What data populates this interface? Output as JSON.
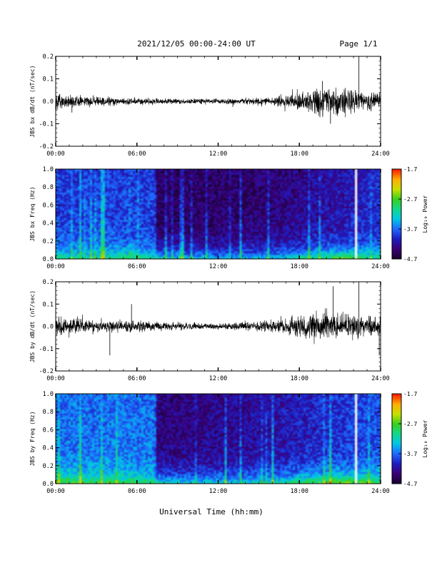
{
  "header": {
    "date_range": "2021/12/05  00:00-24:00 UT",
    "page": "Page 1/1"
  },
  "xlabel": "Universal Time (hh:mm)",
  "colors": {
    "line": "#000000",
    "colorbar_stops": [
      "#1a0033",
      "#3a007a",
      "#1d1fc4",
      "#1e6bff",
      "#00c8e6",
      "#13d88a",
      "#38d11e",
      "#c8e000",
      "#ffb000",
      "#ff2000"
    ]
  },
  "chart_data": [
    {
      "id": "bx_dbdt",
      "type": "line",
      "ylabel": "JBS bx dB/dt (nT/sec)",
      "xlim": [
        0,
        24
      ],
      "ylim": [
        -0.2,
        0.2
      ],
      "xticks": [
        0,
        6,
        12,
        18,
        24
      ],
      "xtick_labels": [
        "00:00",
        "06:00",
        "12:00",
        "18:00",
        "24:00"
      ],
      "yticks": [
        -0.2,
        -0.1,
        0.0,
        0.1,
        0.2
      ],
      "ytick_labels": [
        "-0.2",
        "-0.1",
        "0.0",
        "0.1",
        "0.2"
      ],
      "envelope": {
        "hours": [
          0,
          1,
          2,
          4,
          6,
          8,
          10,
          12,
          14,
          16,
          17,
          18,
          19,
          20,
          21,
          22,
          23,
          24
        ],
        "amplitude": [
          0.035,
          0.03,
          0.025,
          0.018,
          0.015,
          0.012,
          0.012,
          0.012,
          0.014,
          0.02,
          0.028,
          0.04,
          0.055,
          0.065,
          0.06,
          0.05,
          0.045,
          0.04
        ]
      },
      "spikes": [
        {
          "hour": 22.4,
          "value": 0.2
        },
        {
          "hour": 20.3,
          "value": -0.1
        },
        {
          "hour": 19.7,
          "value": 0.09
        },
        {
          "hour": 1.2,
          "value": -0.05
        }
      ]
    },
    {
      "id": "bx_spec",
      "type": "heatmap",
      "ylabel": "JBS bx Freq (Hz)",
      "colorbar_label": "Log₁₀ Power",
      "xlim": [
        0,
        24
      ],
      "ylim": [
        0,
        1
      ],
      "xticks": [
        0,
        6,
        12,
        18,
        24
      ],
      "xtick_labels": [
        "00:00",
        "06:00",
        "12:00",
        "18:00",
        "24:00"
      ],
      "yticks": [
        0,
        0.2,
        0.4,
        0.6,
        0.8,
        1.0
      ],
      "ytick_labels": [
        "0.0",
        "0.2",
        "0.4",
        "0.6",
        "0.8",
        "1.0"
      ],
      "clim": [
        -4.7,
        -1.7
      ],
      "cticks": [
        -4.7,
        -3.7,
        -2.7,
        -1.7
      ],
      "ctick_labels": [
        "-4.7",
        "-3.7",
        "-2.7",
        "-1.7"
      ],
      "background_level": {
        "hours": [
          0,
          7.3,
          7.4,
          16,
          24
        ],
        "level": [
          -3.9,
          -3.9,
          -4.5,
          -4.4,
          -4.0
        ]
      },
      "low_freq_level": {
        "hours": [
          0,
          2,
          6,
          8,
          12,
          16,
          19,
          21,
          24
        ],
        "level": [
          -3.0,
          -3.1,
          -3.0,
          -3.3,
          -3.5,
          -3.4,
          -3.0,
          -2.8,
          -3.0
        ]
      },
      "gaps": [
        {
          "hour": 22.3
        }
      ]
    },
    {
      "id": "by_dbdt",
      "type": "line",
      "ylabel": "JBS by dB/dt (nT/sec)",
      "xlim": [
        0,
        24
      ],
      "ylim": [
        -0.2,
        0.2
      ],
      "xticks": [
        0,
        6,
        12,
        18,
        24
      ],
      "xtick_labels": [
        "00:00",
        "06:00",
        "12:00",
        "18:00",
        "24:00"
      ],
      "yticks": [
        -0.2,
        -0.1,
        0.0,
        0.1,
        0.2
      ],
      "ytick_labels": [
        "-0.2",
        "-0.1",
        "0.0",
        "0.1",
        "0.2"
      ],
      "envelope": {
        "hours": [
          0,
          1,
          2,
          4,
          6,
          8,
          10,
          12,
          14,
          16,
          17,
          18,
          19,
          20,
          21,
          22,
          23,
          24
        ],
        "amplitude": [
          0.045,
          0.045,
          0.035,
          0.03,
          0.025,
          0.018,
          0.015,
          0.014,
          0.018,
          0.028,
          0.04,
          0.05,
          0.06,
          0.065,
          0.06,
          0.055,
          0.05,
          0.045
        ]
      },
      "spikes": [
        {
          "hour": 20.5,
          "value": 0.18
        },
        {
          "hour": 22.4,
          "value": 0.2
        },
        {
          "hour": 4.0,
          "value": -0.13
        },
        {
          "hour": 5.6,
          "value": 0.1
        },
        {
          "hour": 23.9,
          "value": -0.13
        }
      ]
    },
    {
      "id": "by_spec",
      "type": "heatmap",
      "ylabel": "JBS by Freq (Hz)",
      "colorbar_label": "Log₁₀ Power",
      "xlim": [
        0,
        24
      ],
      "ylim": [
        0,
        1
      ],
      "xticks": [
        0,
        6,
        12,
        18,
        24
      ],
      "xtick_labels": [
        "00:00",
        "06:00",
        "12:00",
        "18:00",
        "24:00"
      ],
      "yticks": [
        0,
        0.2,
        0.4,
        0.6,
        0.8,
        1.0
      ],
      "ytick_labels": [
        "0.0",
        "0.2",
        "0.4",
        "0.6",
        "0.8",
        "1.0"
      ],
      "clim": [
        -4.7,
        -1.7
      ],
      "cticks": [
        -4.7,
        -3.7,
        -2.7,
        -1.7
      ],
      "ctick_labels": [
        "-4.7",
        "-3.7",
        "-2.7",
        "-1.7"
      ],
      "background_level": {
        "hours": [
          0,
          7.3,
          7.4,
          16,
          24
        ],
        "level": [
          -3.7,
          -3.7,
          -4.4,
          -4.2,
          -3.8
        ]
      },
      "low_freq_level": {
        "hours": [
          0,
          2,
          6,
          8,
          12,
          16,
          19,
          21,
          24
        ],
        "level": [
          -2.7,
          -2.8,
          -2.9,
          -3.2,
          -3.3,
          -3.2,
          -2.8,
          -2.6,
          -2.8
        ]
      },
      "gaps": [
        {
          "hour": 22.3
        }
      ]
    }
  ]
}
